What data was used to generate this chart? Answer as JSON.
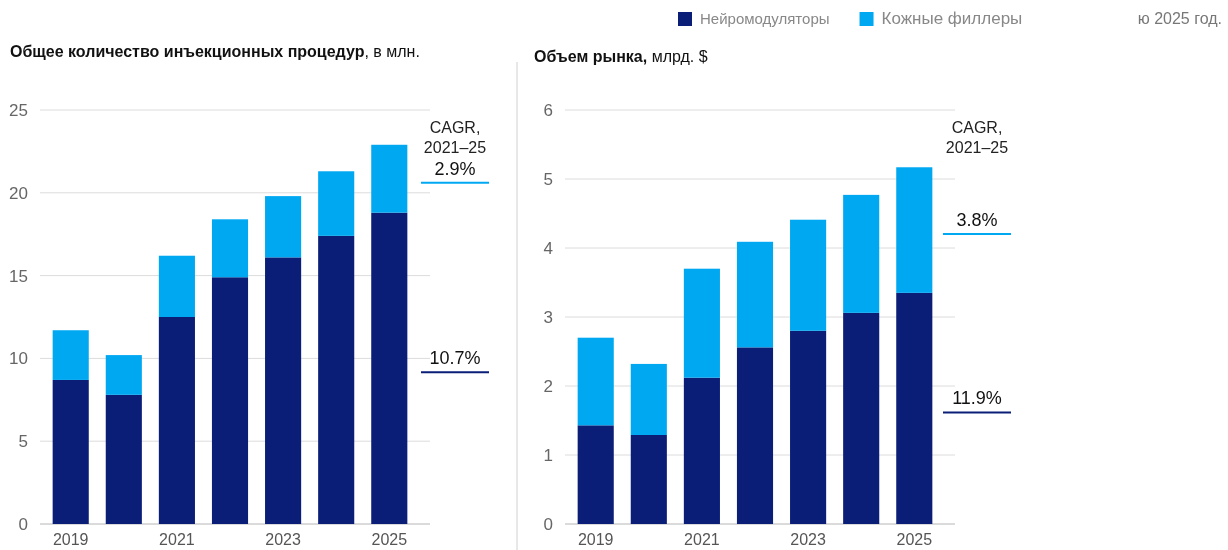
{
  "chart_data": [
    {
      "type": "bar",
      "stacked": true,
      "title": "Общее количество инъекционных процедур, в млн.",
      "categories": [
        "2019",
        null,
        "2021",
        null,
        "2023",
        null,
        "2025"
      ],
      "series": [
        {
          "color": "#0a1e78",
          "values": [
            8.7,
            7.8,
            12.5,
            14.9,
            16.1,
            17.4,
            18.8
          ]
        },
        {
          "color": "#00a8f2",
          "values": [
            3.0,
            2.4,
            3.7,
            3.5,
            3.7,
            3.9,
            4.1
          ]
        }
      ],
      "ylim": [
        0,
        25
      ],
      "yticks": [
        0,
        5,
        10,
        15,
        20,
        25
      ],
      "grid": "y",
      "legend": false,
      "annotations": [
        "CAGR, 2021–25",
        "10.7%",
        "2.9%"
      ]
    },
    {
      "type": "bar",
      "stacked": true,
      "title": "Объем рынка, млрд. $",
      "categories": [
        "2019",
        null,
        "2021",
        null,
        "2023",
        null,
        "2025"
      ],
      "series": [
        {
          "name": "Нейромодуляторы",
          "color": "#0a1e78",
          "values": [
            1.43,
            1.29,
            2.12,
            2.56,
            2.8,
            3.06,
            3.35
          ]
        },
        {
          "name": "Кожные филлеры",
          "color": "#00a8f2",
          "values": [
            1.27,
            1.03,
            1.58,
            1.53,
            1.61,
            1.71,
            1.82
          ]
        }
      ],
      "ylim": [
        0,
        6
      ],
      "yticks": [
        0,
        1,
        2,
        3,
        4,
        5,
        6
      ],
      "grid": "y",
      "legend": "top",
      "annotations": [
        "CAGR, 2021–25",
        "11.9%",
        "3.8%",
        "ю 2025 год."
      ]
    }
  ]
}
